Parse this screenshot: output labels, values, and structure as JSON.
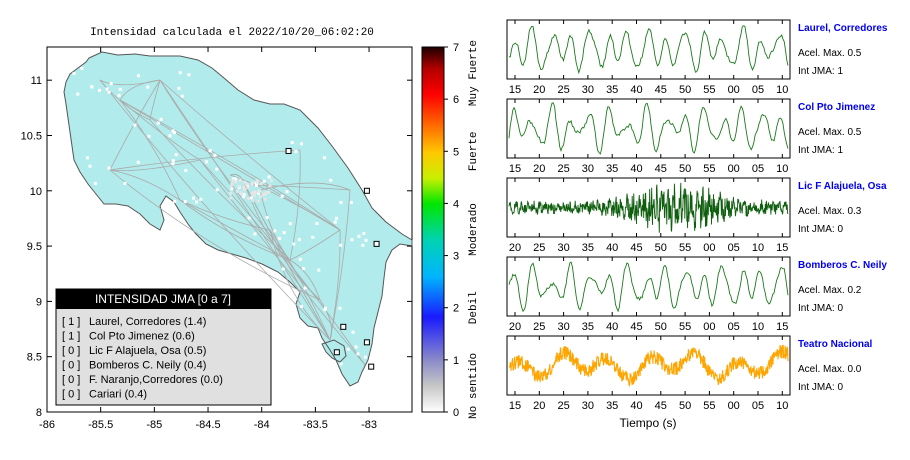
{
  "map": {
    "title": "Intensidad calculada el 2022/10/20_06:02:20",
    "x_ticks": [
      "-86",
      "-85.5",
      "-85",
      "-84.5",
      "-84",
      "-83.5",
      "-83"
    ],
    "y_ticks": [
      "8",
      "8.5",
      "9",
      "9.5",
      "10",
      "10.5",
      "11"
    ],
    "xlim": [
      -86,
      -82.6
    ],
    "ylim": [
      8,
      11.3
    ],
    "land_color": "#b2ebeb",
    "colorbar": {
      "ticks": [
        "0",
        "1",
        "2",
        "3",
        "4",
        "5",
        "6",
        "7"
      ],
      "categories": [
        "No sentido",
        "Debil",
        "Moderado",
        "Fuerte",
        "Muy Fuerte"
      ],
      "range": [
        0,
        7
      ]
    },
    "stations": [
      {
        "lon": -83.75,
        "lat": 10.36
      },
      {
        "lon": -83.02,
        "lat": 10.0
      },
      {
        "lon": -82.93,
        "lat": 9.52
      },
      {
        "lon": -83.24,
        "lat": 8.77
      },
      {
        "lon": -83.02,
        "lat": 8.63
      },
      {
        "lon": -83.3,
        "lat": 8.54
      },
      {
        "lon": -82.98,
        "lat": 8.41
      }
    ]
  },
  "legend": {
    "title": "INTENSIDAD JMA [0 a 7]",
    "items": [
      {
        "level": "[ 1 ]",
        "label": "Laurel, Corredores (1.4)"
      },
      {
        "level": "[ 1 ]",
        "label": "Col Pto Jimenez (0.6)"
      },
      {
        "level": "[ 0 ]",
        "label": "Lic F Alajuela, Osa (0.5)"
      },
      {
        "level": "[ 0 ]",
        "label": "Bomberos C. Neily (0.4)"
      },
      {
        "level": "[ 0 ]",
        "label": "F. Naranjo,Corredores (0.0)"
      },
      {
        "level": "[ 0 ]",
        "label": "Cariari (0.4)"
      }
    ]
  },
  "chart_data": [
    {
      "type": "line",
      "name": "Laurel, Corredores",
      "accel_label": "Acel. Max. 0.5",
      "int_label": "Int JMA: 1",
      "color": "#1a7a1a",
      "ticks": [
        "15",
        "20",
        "25",
        "30",
        "35",
        "40",
        "45",
        "50",
        "55",
        "00",
        "05",
        "10"
      ],
      "tick_start": 15,
      "style": "smooth"
    },
    {
      "type": "line",
      "name": "Col Pto Jimenez",
      "accel_label": "Acel. Max. 0.5",
      "int_label": "Int JMA: 1",
      "color": "#1a7a1a",
      "ticks": [
        "15",
        "20",
        "25",
        "30",
        "35",
        "40",
        "45",
        "50",
        "55",
        "00",
        "05",
        "10"
      ],
      "tick_start": 15,
      "style": "smooth"
    },
    {
      "type": "line",
      "name": "Lic F Alajuela, Osa",
      "accel_label": "Acel. Max. 0.3",
      "int_label": "Int JMA: 0",
      "color": "#0e5e0e",
      "ticks": [
        "20",
        "25",
        "30",
        "35",
        "40",
        "45",
        "50",
        "55",
        "00",
        "05",
        "10",
        "15"
      ],
      "tick_start": 20,
      "style": "noisy"
    },
    {
      "type": "line",
      "name": "Bomberos C. Neily",
      "accel_label": "Acel. Max. 0.2",
      "int_label": "Int JMA: 0",
      "color": "#1a7a1a",
      "ticks": [
        "20",
        "25",
        "30",
        "35",
        "40",
        "45",
        "50",
        "55",
        "00",
        "05",
        "10",
        "15"
      ],
      "tick_start": 20,
      "style": "smooth"
    },
    {
      "type": "line",
      "name": "Teatro Nacional",
      "accel_label": "Acel. Max. 0.0",
      "int_label": "Int JMA: 0",
      "color": "#ffa500",
      "ticks": [
        "15",
        "20",
        "25",
        "30",
        "35",
        "40",
        "45",
        "50",
        "55",
        "00",
        "05",
        "10"
      ],
      "tick_start": 15,
      "style": "band"
    }
  ],
  "xlabel": "Tiempo (s)"
}
